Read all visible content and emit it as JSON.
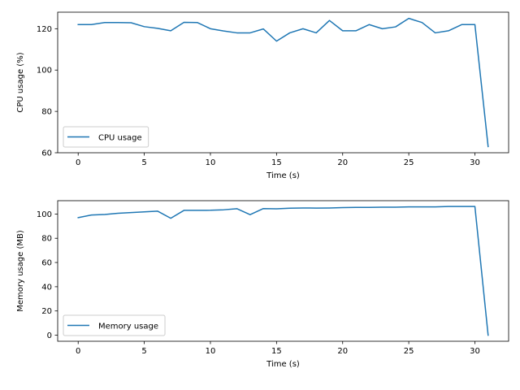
{
  "chart_data": [
    {
      "type": "line",
      "xlabel": "Time (s)",
      "ylabel": "CPU usage (%)",
      "xlim": [
        -1.55,
        32.55
      ],
      "ylim": [
        60,
        128
      ],
      "xticks": [
        0,
        5,
        10,
        15,
        20,
        25,
        30
      ],
      "yticks": [
        60,
        80,
        100,
        120
      ],
      "grid": false,
      "legend": "lower-left",
      "color": "#1f77b4",
      "series": [
        {
          "name": "CPU usage",
          "x": [
            0,
            1,
            2,
            3,
            4,
            5,
            6,
            7,
            8,
            9,
            10,
            11,
            12,
            13,
            14,
            15,
            16,
            17,
            18,
            19,
            20,
            21,
            22,
            23,
            24,
            25,
            26,
            27,
            28,
            29,
            30,
            31
          ],
          "y": [
            122,
            122,
            123,
            123,
            122.9,
            121,
            120.2,
            119,
            123.1,
            123,
            120,
            118.9,
            118,
            118,
            119.9,
            114,
            118,
            120,
            118,
            124,
            119,
            119,
            122,
            120,
            120.9,
            125,
            123,
            118,
            119,
            122,
            122,
            63
          ]
        }
      ]
    },
    {
      "type": "line",
      "xlabel": "Time (s)",
      "ylabel": "Memory usage (MB)",
      "xlim": [
        -1.55,
        32.55
      ],
      "ylim": [
        -5,
        111
      ],
      "xticks": [
        0,
        5,
        10,
        15,
        20,
        25,
        30
      ],
      "yticks": [
        0,
        20,
        40,
        60,
        80,
        100
      ],
      "grid": false,
      "legend": "lower-left",
      "color": "#1f77b4",
      "series": [
        {
          "name": "Memory usage",
          "x": [
            0,
            1,
            2,
            3,
            4,
            5,
            6,
            7,
            8,
            9,
            10,
            11,
            12,
            13,
            14,
            15,
            16,
            17,
            18,
            19,
            20,
            21,
            22,
            23,
            24,
            25,
            26,
            27,
            28,
            29,
            30,
            31
          ],
          "y": [
            97,
            99.2,
            99.6,
            100.6,
            101.2,
            101.8,
            102.4,
            96.5,
            103,
            103,
            103.1,
            103.5,
            104.4,
            99.5,
            104.5,
            104.3,
            104.8,
            105,
            104.9,
            105,
            105.3,
            105.5,
            105.5,
            105.6,
            105.6,
            105.9,
            105.9,
            105.9,
            106.2,
            106.2,
            106.2,
            0
          ]
        }
      ]
    }
  ]
}
